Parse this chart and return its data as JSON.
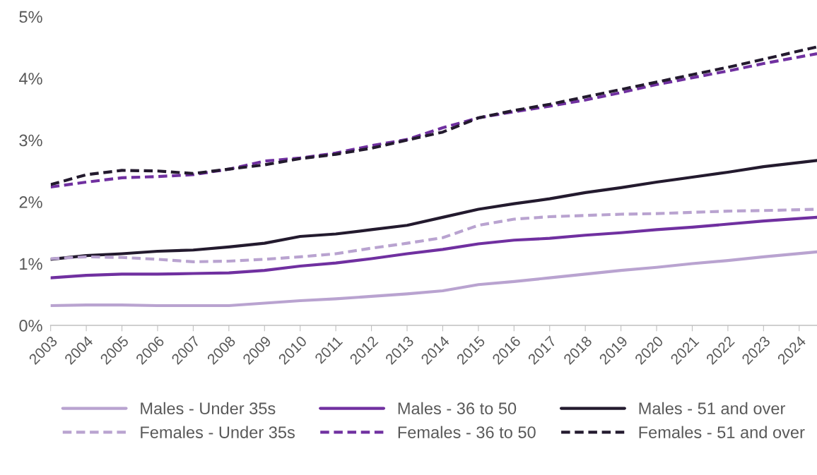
{
  "chart_data": {
    "type": "line",
    "x": [
      2003,
      2004,
      2005,
      2006,
      2007,
      2008,
      2009,
      2010,
      2011,
      2012,
      2013,
      2014,
      2015,
      2016,
      2017,
      2018,
      2019,
      2020,
      2021,
      2022,
      2023,
      2024.5
    ],
    "series": [
      {
        "name": "Males - Under 35s",
        "color": "#b9a3d0",
        "line_style": "solid",
        "values": [
          0.32,
          0.33,
          0.33,
          0.32,
          0.32,
          0.32,
          0.36,
          0.4,
          0.43,
          0.47,
          0.51,
          0.56,
          0.66,
          0.71,
          0.77,
          0.83,
          0.89,
          0.94,
          1.0,
          1.05,
          1.11,
          1.19
        ]
      },
      {
        "name": "Males - 36 to 50",
        "color": "#7030a0",
        "line_style": "solid",
        "values": [
          0.77,
          0.81,
          0.83,
          0.83,
          0.84,
          0.85,
          0.89,
          0.96,
          1.01,
          1.08,
          1.16,
          1.23,
          1.32,
          1.38,
          1.41,
          1.46,
          1.5,
          1.55,
          1.59,
          1.64,
          1.69,
          1.75
        ]
      },
      {
        "name": "Males - 51 and over",
        "color": "#231a2e",
        "line_style": "solid",
        "values": [
          1.07,
          1.13,
          1.16,
          1.2,
          1.22,
          1.27,
          1.33,
          1.44,
          1.48,
          1.55,
          1.62,
          1.75,
          1.88,
          1.97,
          2.05,
          2.15,
          2.23,
          2.32,
          2.4,
          2.48,
          2.57,
          2.67
        ]
      },
      {
        "name": "Females - Under 35s",
        "color": "#b9a3d0",
        "line_style": "dashed",
        "values": [
          1.08,
          1.11,
          1.1,
          1.07,
          1.03,
          1.04,
          1.07,
          1.11,
          1.16,
          1.25,
          1.33,
          1.42,
          1.62,
          1.72,
          1.76,
          1.78,
          1.8,
          1.81,
          1.83,
          1.85,
          1.86,
          1.88
        ]
      },
      {
        "name": "Females - 36 to 50",
        "color": "#7030a0",
        "line_style": "dashed",
        "values": [
          2.24,
          2.32,
          2.39,
          2.41,
          2.44,
          2.53,
          2.66,
          2.71,
          2.79,
          2.91,
          3.01,
          3.2,
          3.36,
          3.46,
          3.55,
          3.65,
          3.77,
          3.9,
          4.01,
          4.12,
          4.24,
          4.4
        ]
      },
      {
        "name": "Females - 51 and over",
        "color": "#231a2e",
        "line_style": "dashed",
        "values": [
          2.28,
          2.44,
          2.51,
          2.5,
          2.46,
          2.53,
          2.6,
          2.7,
          2.77,
          2.87,
          3.0,
          3.13,
          3.36,
          3.48,
          3.58,
          3.7,
          3.82,
          3.94,
          4.06,
          4.18,
          4.31,
          4.51
        ]
      }
    ],
    "xlim": [
      2003,
      2024.5
    ],
    "xticks": [
      2003,
      2004,
      2005,
      2006,
      2007,
      2008,
      2009,
      2010,
      2011,
      2012,
      2013,
      2014,
      2015,
      2016,
      2017,
      2018,
      2019,
      2020,
      2021,
      2022,
      2023,
      2024
    ],
    "ylim": [
      0,
      5
    ],
    "yticks": [
      {
        "value": 0,
        "label": "0%"
      },
      {
        "value": 1,
        "label": "1%"
      },
      {
        "value": 2,
        "label": "2%"
      },
      {
        "value": 3,
        "label": "3%"
      },
      {
        "value": 4,
        "label": "4%"
      },
      {
        "value": 5,
        "label": "5%"
      }
    ],
    "grid": false,
    "legend": "bottom"
  }
}
